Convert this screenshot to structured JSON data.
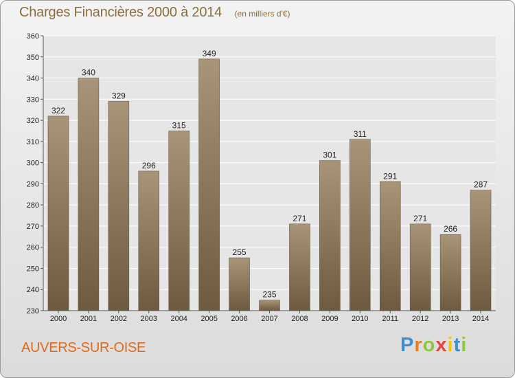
{
  "header": {
    "title": "Charges Financières 2000 à 2014",
    "subtitle": "(en milliers d'€)"
  },
  "footer": {
    "commune": "AUVERS-SUR-OISE",
    "logo": [
      "P",
      "r",
      "o",
      "x",
      "i",
      "t",
      "i"
    ]
  },
  "colors": {
    "bar_top": "#a89476",
    "bar_bottom": "#6e5a3e",
    "grid": "#ffffff",
    "plot_bg": "#e6e6e6",
    "title": "#8a6d3b",
    "commune": "#e06a1c"
  },
  "chart_data": {
    "type": "bar",
    "title": "Charges Financières 2000 à 2014",
    "subtitle": "(en milliers d'€)",
    "categories": [
      "2000",
      "2001",
      "2002",
      "2003",
      "2004",
      "2005",
      "2006",
      "2007",
      "2008",
      "2009",
      "2010",
      "2011",
      "2012",
      "2013",
      "2014"
    ],
    "values": [
      322,
      340,
      329,
      296,
      315,
      349,
      255,
      235,
      271,
      301,
      311,
      291,
      271,
      266,
      287
    ],
    "ylim": [
      230,
      360
    ],
    "yticks": [
      230,
      240,
      250,
      260,
      270,
      280,
      290,
      300,
      310,
      320,
      330,
      340,
      350,
      360
    ],
    "xlabel": "",
    "ylabel": "",
    "grid": true,
    "legend": "none"
  }
}
